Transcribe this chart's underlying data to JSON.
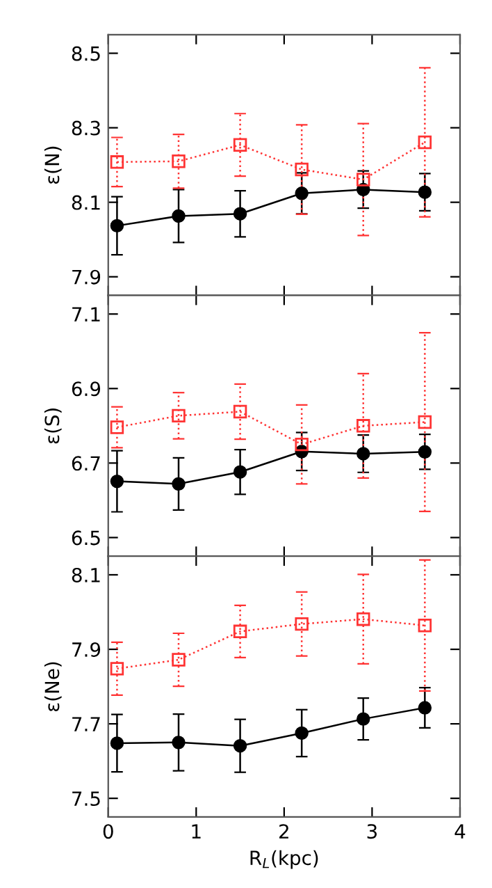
{
  "chart_data": [
    {
      "type": "line",
      "ylabel": "ε(N)",
      "x": [
        0.1,
        0.8,
        1.5,
        2.2,
        2.9,
        3.6
      ],
      "xlim": [
        0,
        4
      ],
      "xticks": [
        0,
        1,
        2,
        3,
        4
      ],
      "ylim": [
        7.85,
        8.55
      ],
      "yticks": [
        7.9,
        8.1,
        8.3,
        8.5
      ],
      "tick_labels": "y",
      "series": [
        {
          "color": "#000000",
          "marker": "circle",
          "line_style": "solid",
          "values": [
            8.037,
            8.063,
            8.069,
            8.124,
            8.134,
            8.127
          ],
          "errors": [
            0.078,
            0.071,
            0.062,
            0.055,
            0.05,
            0.05
          ]
        },
        {
          "color": "#ff3333",
          "marker": "square",
          "line_style": "dotted",
          "values": [
            8.208,
            8.21,
            8.254,
            8.188,
            8.161,
            8.261
          ],
          "errors": [
            0.066,
            0.072,
            0.084,
            0.12,
            0.15,
            0.2
          ]
        }
      ]
    },
    {
      "type": "line",
      "ylabel": "ε(S)",
      "x": [
        0.1,
        0.8,
        1.5,
        2.2,
        2.9,
        3.6
      ],
      "xlim": [
        0,
        4
      ],
      "xticks": [
        0,
        1,
        2,
        3,
        4
      ],
      "ylim": [
        6.45,
        7.15
      ],
      "yticks": [
        6.5,
        6.7,
        6.9,
        7.1
      ],
      "tick_labels": "y",
      "series": [
        {
          "color": "#000000",
          "marker": "circle",
          "line_style": "solid",
          "values": [
            6.651,
            6.644,
            6.676,
            6.731,
            6.725,
            6.73
          ],
          "errors": [
            0.082,
            0.07,
            0.06,
            0.051,
            0.05,
            0.047
          ]
        },
        {
          "color": "#ff3333",
          "marker": "square",
          "line_style": "dotted",
          "values": [
            6.796,
            6.827,
            6.838,
            6.75,
            6.8,
            6.81
          ],
          "errors": [
            0.055,
            0.062,
            0.074,
            0.106,
            0.14,
            0.24
          ]
        }
      ]
    },
    {
      "type": "line",
      "xlabel": "R$_{L}$(kpc)",
      "ylabel": "ε(Ne)",
      "x": [
        0.1,
        0.8,
        1.5,
        2.2,
        2.9,
        3.6
      ],
      "xlim": [
        0,
        4
      ],
      "xticks": [
        0,
        1,
        2,
        3,
        4
      ],
      "ylim": [
        7.45,
        8.15
      ],
      "yticks": [
        7.5,
        7.7,
        7.9,
        8.1
      ],
      "series": [
        {
          "color": "#000000",
          "marker": "circle",
          "line_style": "solid",
          "values": [
            7.648,
            7.65,
            7.641,
            7.675,
            7.713,
            7.743
          ],
          "errors": [
            0.077,
            0.076,
            0.071,
            0.063,
            0.056,
            0.054
          ]
        },
        {
          "color": "#ff3333",
          "marker": "square",
          "line_style": "dotted",
          "values": [
            7.848,
            7.872,
            7.948,
            7.968,
            7.981,
            7.964
          ],
          "errors": [
            0.071,
            0.071,
            0.07,
            0.086,
            0.12,
            0.176
          ]
        }
      ]
    }
  ]
}
